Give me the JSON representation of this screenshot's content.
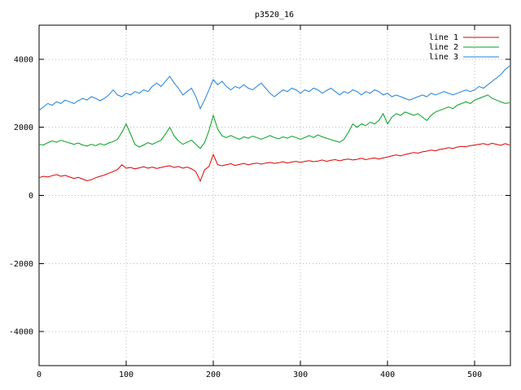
{
  "chart_data": {
    "type": "line",
    "title": "p3520_16",
    "xlabel": "",
    "ylabel": "",
    "xlim": [
      0,
      541
    ],
    "ylim": [
      -5000,
      5000
    ],
    "xticks": [
      0,
      100,
      200,
      300,
      400,
      500
    ],
    "yticks": [
      -4000,
      -2000,
      0,
      2000,
      4000
    ],
    "grid": true,
    "legend_position": "top-right",
    "x_start": 0,
    "x_step": 5,
    "series": [
      {
        "name": "line 1",
        "color": "#dc0000",
        "values": [
          520,
          560,
          540,
          580,
          610,
          560,
          590,
          540,
          500,
          530,
          480,
          430,
          460,
          520,
          560,
          600,
          650,
          700,
          760,
          900,
          800,
          820,
          780,
          810,
          840,
          800,
          830,
          790,
          820,
          850,
          870,
          820,
          850,
          800,
          830,
          780,
          700,
          420,
          750,
          850,
          1200,
          900,
          870,
          900,
          930,
          880,
          910,
          940,
          900,
          930,
          950,
          920,
          950,
          970,
          940,
          960,
          990,
          950,
          980,
          1000,
          970,
          1000,
          1020,
          990,
          1010,
          1040,
          1000,
          1030,
          1050,
          1020,
          1050,
          1070,
          1040,
          1060,
          1090,
          1050,
          1080,
          1100,
          1070,
          1100,
          1130,
          1160,
          1190,
          1160,
          1200,
          1230,
          1260,
          1240,
          1280,
          1300,
          1330,
          1310,
          1350,
          1370,
          1400,
          1380,
          1420,
          1440,
          1430,
          1460,
          1480,
          1500,
          1520,
          1490,
          1530,
          1500,
          1470,
          1520,
          1480
        ]
      },
      {
        "name": "line 2",
        "color": "#00a020",
        "values": [
          1500,
          1480,
          1550,
          1600,
          1560,
          1620,
          1580,
          1540,
          1500,
          1540,
          1480,
          1450,
          1500,
          1460,
          1520,
          1480,
          1540,
          1580,
          1650,
          1850,
          2100,
          1800,
          1500,
          1420,
          1480,
          1550,
          1500,
          1560,
          1620,
          1800,
          2000,
          1750,
          1600,
          1500,
          1560,
          1620,
          1500,
          1380,
          1550,
          1900,
          2350,
          1950,
          1750,
          1700,
          1760,
          1700,
          1650,
          1720,
          1680,
          1740,
          1700,
          1650,
          1700,
          1760,
          1700,
          1660,
          1720,
          1680,
          1740,
          1700,
          1650,
          1700,
          1760,
          1700,
          1780,
          1720,
          1680,
          1640,
          1600,
          1560,
          1650,
          1850,
          2100,
          2000,
          2100,
          2050,
          2150,
          2100,
          2200,
          2400,
          2100,
          2300,
          2400,
          2350,
          2450,
          2400,
          2350,
          2400,
          2300,
          2200,
          2350,
          2450,
          2500,
          2550,
          2600,
          2550,
          2650,
          2700,
          2750,
          2700,
          2800,
          2850,
          2900,
          2950,
          2850,
          2800,
          2750,
          2700,
          2720
        ]
      },
      {
        "name": "line 3",
        "color": "#2080dd",
        "values": [
          2500,
          2600,
          2700,
          2650,
          2750,
          2700,
          2800,
          2750,
          2700,
          2780,
          2850,
          2800,
          2900,
          2850,
          2780,
          2850,
          2950,
          3100,
          2950,
          2900,
          3000,
          2950,
          3050,
          3000,
          3100,
          3050,
          3200,
          3300,
          3200,
          3350,
          3500,
          3300,
          3150,
          2950,
          3050,
          3150,
          2900,
          2550,
          2800,
          3100,
          3400,
          3250,
          3350,
          3200,
          3100,
          3200,
          3150,
          3250,
          3150,
          3100,
          3200,
          3300,
          3150,
          3000,
          2900,
          3000,
          3100,
          3050,
          3150,
          3100,
          3000,
          3100,
          3050,
          3150,
          3100,
          3000,
          3080,
          3150,
          3050,
          2950,
          3050,
          3000,
          3100,
          3050,
          2950,
          3050,
          3000,
          3100,
          3050,
          2950,
          3000,
          2900,
          2950,
          2900,
          2850,
          2800,
          2850,
          2900,
          2950,
          2900,
          3000,
          2950,
          3000,
          3050,
          3000,
          2950,
          3000,
          3050,
          3100,
          3050,
          3100,
          3200,
          3150,
          3250,
          3350,
          3450,
          3550,
          3700,
          3800
        ]
      }
    ]
  }
}
